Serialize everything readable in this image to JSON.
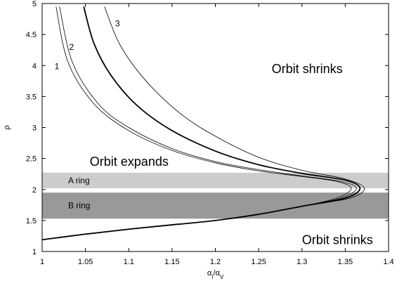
{
  "chart_data": {
    "type": "line",
    "title": "",
    "xlabel": "α_I/α_V",
    "ylabel": "ρ",
    "xlim": [
      1.0,
      1.4
    ],
    "ylim": [
      1.0,
      5.0
    ],
    "x_ticks": [
      "1",
      "1.05",
      "1.1",
      "1.15",
      "1.2",
      "1.25",
      "1.3",
      "1.35",
      "1.4"
    ],
    "y_ticks": [
      "1",
      "1.5",
      "2",
      "2.5",
      "3",
      "3.5",
      "4",
      "4.5",
      "5"
    ],
    "grid": false,
    "bands": [
      {
        "label": "A ring",
        "y_range": [
          2.02,
          2.27
        ],
        "color": "#cccccc"
      },
      {
        "label": "B ring",
        "y_range": [
          1.53,
          1.95
        ],
        "color": "#999999"
      }
    ],
    "region_labels": [
      {
        "text": "Orbit shrinks",
        "x": 1.265,
        "y": 3.88
      },
      {
        "text": "Orbit expands",
        "x": 1.055,
        "y": 2.38
      },
      {
        "text": "Orbit shrinks",
        "x": 1.3,
        "y": 1.12
      }
    ],
    "series": [
      {
        "label": "1",
        "line_width": "thin",
        "points": [
          [
            1.016,
            4.95
          ],
          [
            1.03,
            4.05
          ],
          [
            1.06,
            3.38
          ],
          [
            1.1,
            2.95
          ],
          [
            1.15,
            2.63
          ],
          [
            1.2,
            2.43
          ],
          [
            1.25,
            2.3
          ],
          [
            1.3,
            2.21
          ],
          [
            1.34,
            2.13
          ],
          [
            1.357,
            2.02
          ],
          [
            1.34,
            1.86
          ],
          [
            1.3,
            1.73
          ],
          [
            1.25,
            1.6
          ],
          [
            1.2,
            1.5
          ],
          [
            1.15,
            1.43
          ],
          [
            1.1,
            1.36
          ],
          [
            1.05,
            1.28
          ],
          [
            1.0,
            1.19
          ]
        ]
      },
      {
        "label": "2",
        "line_width": "thin",
        "points": [
          [
            1.02,
            4.95
          ],
          [
            1.035,
            4.05
          ],
          [
            1.065,
            3.38
          ],
          [
            1.1,
            3.0
          ],
          [
            1.15,
            2.66
          ],
          [
            1.2,
            2.45
          ],
          [
            1.25,
            2.32
          ],
          [
            1.3,
            2.22
          ],
          [
            1.345,
            2.13
          ],
          [
            1.363,
            2.02
          ],
          [
            1.345,
            1.86
          ],
          [
            1.3,
            1.73
          ],
          [
            1.25,
            1.6
          ],
          [
            1.2,
            1.5
          ],
          [
            1.15,
            1.43
          ],
          [
            1.1,
            1.36
          ],
          [
            1.05,
            1.28
          ],
          [
            1.0,
            1.19
          ]
        ]
      },
      {
        "label": "",
        "line_width": "thick",
        "points": [
          [
            1.048,
            4.95
          ],
          [
            1.06,
            4.35
          ],
          [
            1.08,
            3.83
          ],
          [
            1.11,
            3.35
          ],
          [
            1.15,
            2.95
          ],
          [
            1.2,
            2.62
          ],
          [
            1.25,
            2.4
          ],
          [
            1.3,
            2.26
          ],
          [
            1.35,
            2.15
          ],
          [
            1.367,
            2.02
          ],
          [
            1.35,
            1.86
          ],
          [
            1.3,
            1.73
          ],
          [
            1.25,
            1.6
          ],
          [
            1.2,
            1.5
          ],
          [
            1.15,
            1.43
          ],
          [
            1.1,
            1.36
          ],
          [
            1.05,
            1.28
          ],
          [
            1.0,
            1.19
          ]
        ]
      },
      {
        "label": "3",
        "line_width": "thin",
        "points": [
          [
            1.072,
            4.95
          ],
          [
            1.09,
            4.33
          ],
          [
            1.12,
            3.75
          ],
          [
            1.16,
            3.22
          ],
          [
            1.2,
            2.86
          ],
          [
            1.25,
            2.52
          ],
          [
            1.3,
            2.31
          ],
          [
            1.35,
            2.17
          ],
          [
            1.372,
            2.02
          ],
          [
            1.355,
            1.86
          ],
          [
            1.3,
            1.73
          ],
          [
            1.25,
            1.6
          ],
          [
            1.2,
            1.5
          ],
          [
            1.15,
            1.43
          ],
          [
            1.1,
            1.36
          ],
          [
            1.05,
            1.28
          ],
          [
            1.0,
            1.19
          ]
        ]
      }
    ]
  }
}
